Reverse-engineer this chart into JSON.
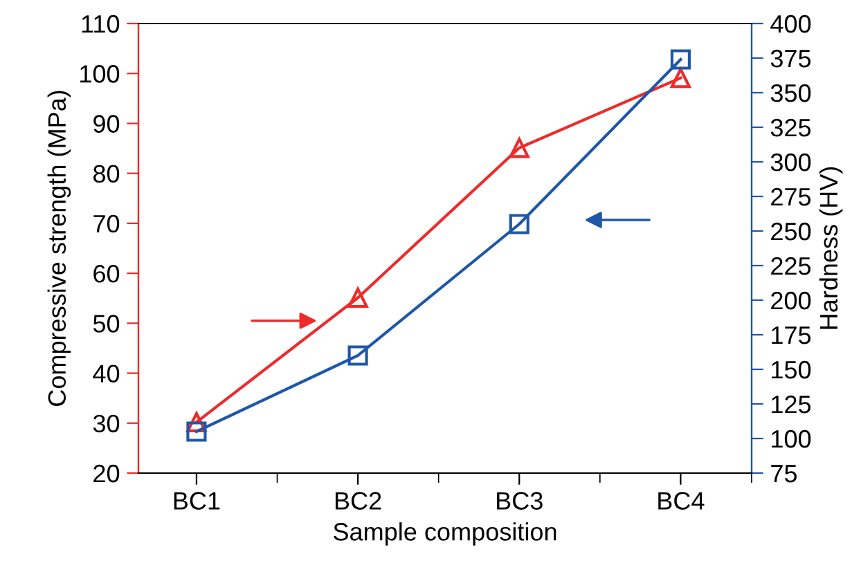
{
  "chart_data": {
    "type": "line",
    "xlabel": "Sample composition",
    "ylabel": "Compressive strength (MPa)",
    "y2label": "Hardness (HV)",
    "categories": [
      "BC1",
      "BC2",
      "BC3",
      "BC4"
    ],
    "series": [
      {
        "color": "#ee2a2a",
        "values": [
          30.2,
          55.1,
          85.1,
          99.1
        ],
        "marker": "triangle"
      },
      {
        "color": "#1f57a8",
        "values": [
          105,
          160,
          255,
          374
        ],
        "marker": "square",
        "axis": "y2"
      }
    ],
    "ylim": [
      20,
      110
    ],
    "yticks": [
      20,
      30,
      40,
      50,
      60,
      70,
      80,
      90,
      100,
      110
    ],
    "y2lim": [
      75,
      400
    ],
    "y2ticks": [
      75,
      100,
      125,
      150,
      175,
      200,
      225,
      250,
      275,
      300,
      325,
      350,
      375,
      400
    ],
    "grid": false,
    "line_style": "solid"
  }
}
